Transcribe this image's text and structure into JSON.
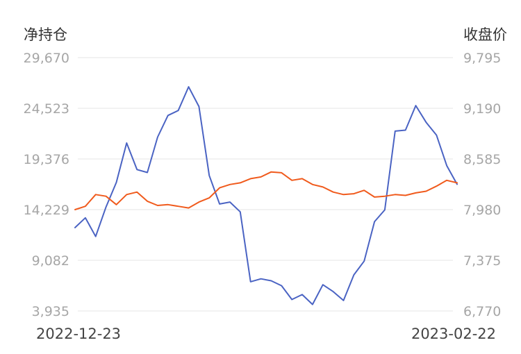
{
  "chart_data": {
    "type": "line",
    "y_left_label": "净持仓",
    "y_right_label": "收盘价",
    "x_start_label": "2022-12-23",
    "x_end_label": "2023-02-22",
    "left_axis": {
      "min": 3935,
      "max": 29670,
      "ticks": [
        "29,670",
        "24,523",
        "19,376",
        "14,229",
        "9,082",
        "3,935"
      ]
    },
    "right_axis": {
      "min": 6770,
      "max": 9795,
      "ticks": [
        "9,795",
        "9,190",
        "8,585",
        "7,980",
        "7,375",
        "6,770"
      ]
    },
    "grid": true,
    "series": [
      {
        "axis": "left",
        "color": "#4a63c3",
        "values": [
          12400,
          13400,
          11500,
          14500,
          17000,
          21000,
          18300,
          18000,
          21600,
          23800,
          24300,
          26700,
          24700,
          17700,
          14800,
          15000,
          14000,
          6900,
          7200,
          7000,
          6500,
          5100,
          5600,
          4600,
          6600,
          5900,
          5000,
          7600,
          9000,
          13000,
          14200,
          22200,
          22300,
          24800,
          23100,
          21800,
          18700,
          16800
        ]
      },
      {
        "axis": "right",
        "color": "#f05a1c",
        "values": [
          7980,
          8020,
          8160,
          8140,
          8040,
          8160,
          8190,
          8080,
          8030,
          8040,
          8020,
          8000,
          8070,
          8120,
          8240,
          8280,
          8300,
          8350,
          8370,
          8430,
          8420,
          8330,
          8350,
          8280,
          8250,
          8190,
          8160,
          8170,
          8210,
          8130,
          8140,
          8160,
          8150,
          8180,
          8200,
          8260,
          8330,
          8300
        ]
      }
    ]
  }
}
